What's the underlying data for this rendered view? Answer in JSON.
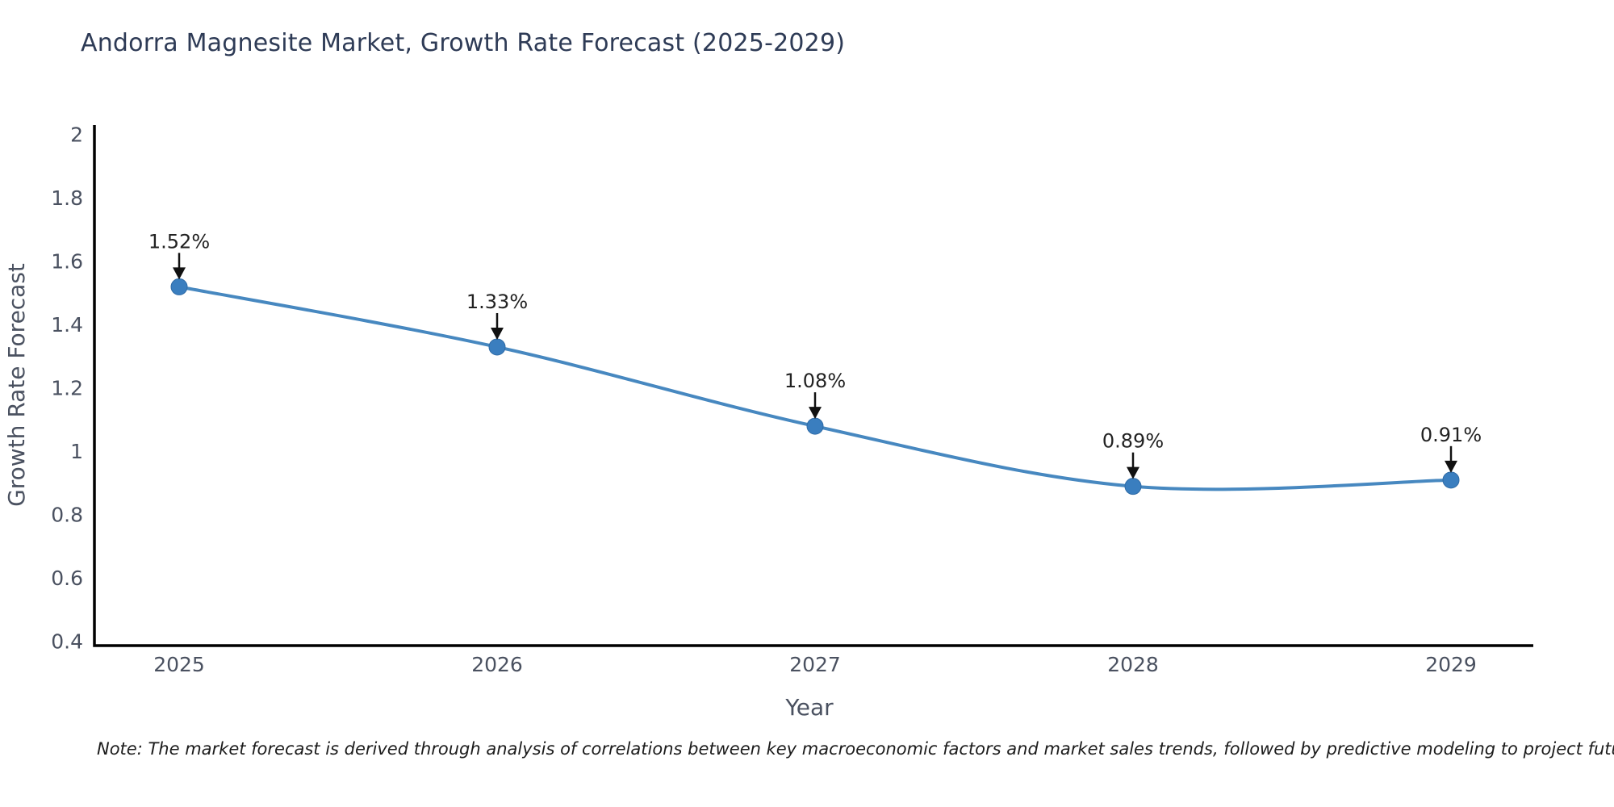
{
  "header": {
    "title": "Andorra Magnesite Market, Growth Rate Forecast (2025-2029)"
  },
  "footer": {
    "note": "Note: The market forecast is derived through analysis of correlations between key macroeconomic factors and market sales trends, followed by predictive modeling to project future sales"
  },
  "chart_data": {
    "type": "line",
    "title": "Andorra Magnesite Market, Growth Rate Forecast (2025-2029)",
    "xlabel": "Year",
    "ylabel": "Growth Rate Forecast",
    "categories": [
      "2025",
      "2026",
      "2027",
      "2028",
      "2029"
    ],
    "values": [
      1.52,
      1.33,
      1.08,
      0.89,
      0.91
    ],
    "point_labels": [
      "1.52%",
      "1.33%",
      "1.08%",
      "0.89%",
      "0.91%"
    ],
    "yticks": [
      2,
      1.8,
      1.6,
      1.4,
      1.2,
      1,
      0.8,
      0.6,
      0.4
    ],
    "ylim": [
      0.4,
      2
    ],
    "line_shape": "spline",
    "grid": false,
    "legend": "none",
    "colors": {
      "line": "#4788c0",
      "marker": "#3a7ebf",
      "marker_edge": "#2f6ba6",
      "axis": "#000000",
      "tick_text": "#4a5160",
      "annotation_text": "#222222",
      "annotation_arrow": "#111111",
      "title_text": "#2e3b56"
    }
  }
}
